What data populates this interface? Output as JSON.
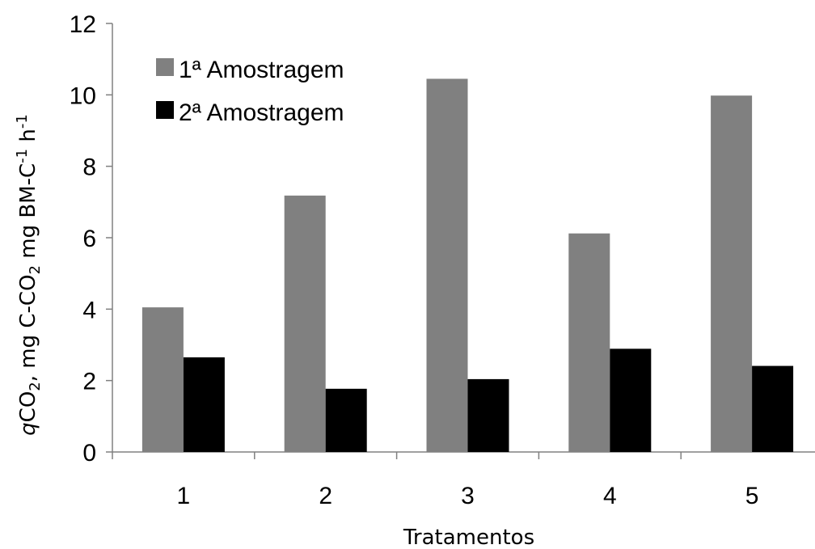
{
  "chart_data": {
    "type": "bar",
    "categories": [
      "1",
      "2",
      "3",
      "4",
      "5"
    ],
    "series": [
      {
        "name": "1ª Amostragem",
        "values": [
          4.05,
          7.18,
          10.45,
          6.12,
          9.98
        ],
        "color": "#808080"
      },
      {
        "name": "2ª Amostragem",
        "values": [
          2.65,
          1.77,
          2.04,
          2.89,
          2.41
        ],
        "color": "#000000"
      }
    ],
    "xlabel": "Tratamentos",
    "ylabel": {
      "q": "q",
      "co2_a": "CO",
      "sub2_a": "2",
      "mid": ", mg C-CO",
      "sub2_b": "2",
      "mid2": " mg BM-C",
      "sup1": "-1",
      "h": " h",
      "sup2": "-1"
    },
    "ylim": [
      0,
      12
    ],
    "yticks": [
      0,
      2,
      4,
      6,
      8,
      10,
      12
    ],
    "grid": false,
    "legend_position": "top-left"
  }
}
